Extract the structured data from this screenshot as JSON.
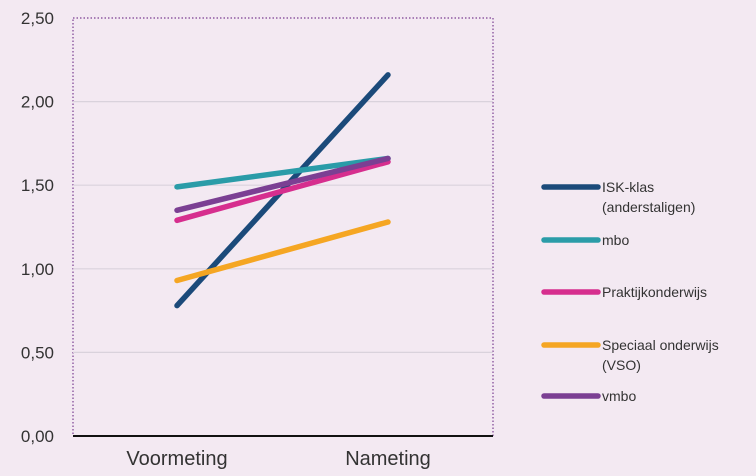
{
  "chart_data": {
    "type": "line",
    "categories": [
      "Voormeting",
      "Nameting"
    ],
    "y_ticks": [
      "0,00",
      "0,50",
      "1,00",
      "1,50",
      "2,00",
      "2,50"
    ],
    "ylim": [
      0,
      2.5
    ],
    "grid": true,
    "legend_position": "right",
    "series": [
      {
        "name_lines": [
          "ISK-klas",
          "(anderstaligen)"
        ],
        "color": "#1b4a7a",
        "values": [
          0.78,
          2.16
        ]
      },
      {
        "name_lines": [
          "mbo"
        ],
        "color": "#2a9ca8",
        "values": [
          1.49,
          1.66
        ]
      },
      {
        "name_lines": [
          "Praktijkonderwijs"
        ],
        "color": "#d62e8e",
        "values": [
          1.29,
          1.64
        ]
      },
      {
        "name_lines": [
          "Speciaal onderwijs",
          "(VSO)"
        ],
        "color": "#f5a623",
        "values": [
          0.93,
          1.28
        ]
      },
      {
        "name_lines": [
          "vmbo"
        ],
        "color": "#7b3f93",
        "values": [
          1.35,
          1.66
        ]
      }
    ]
  }
}
